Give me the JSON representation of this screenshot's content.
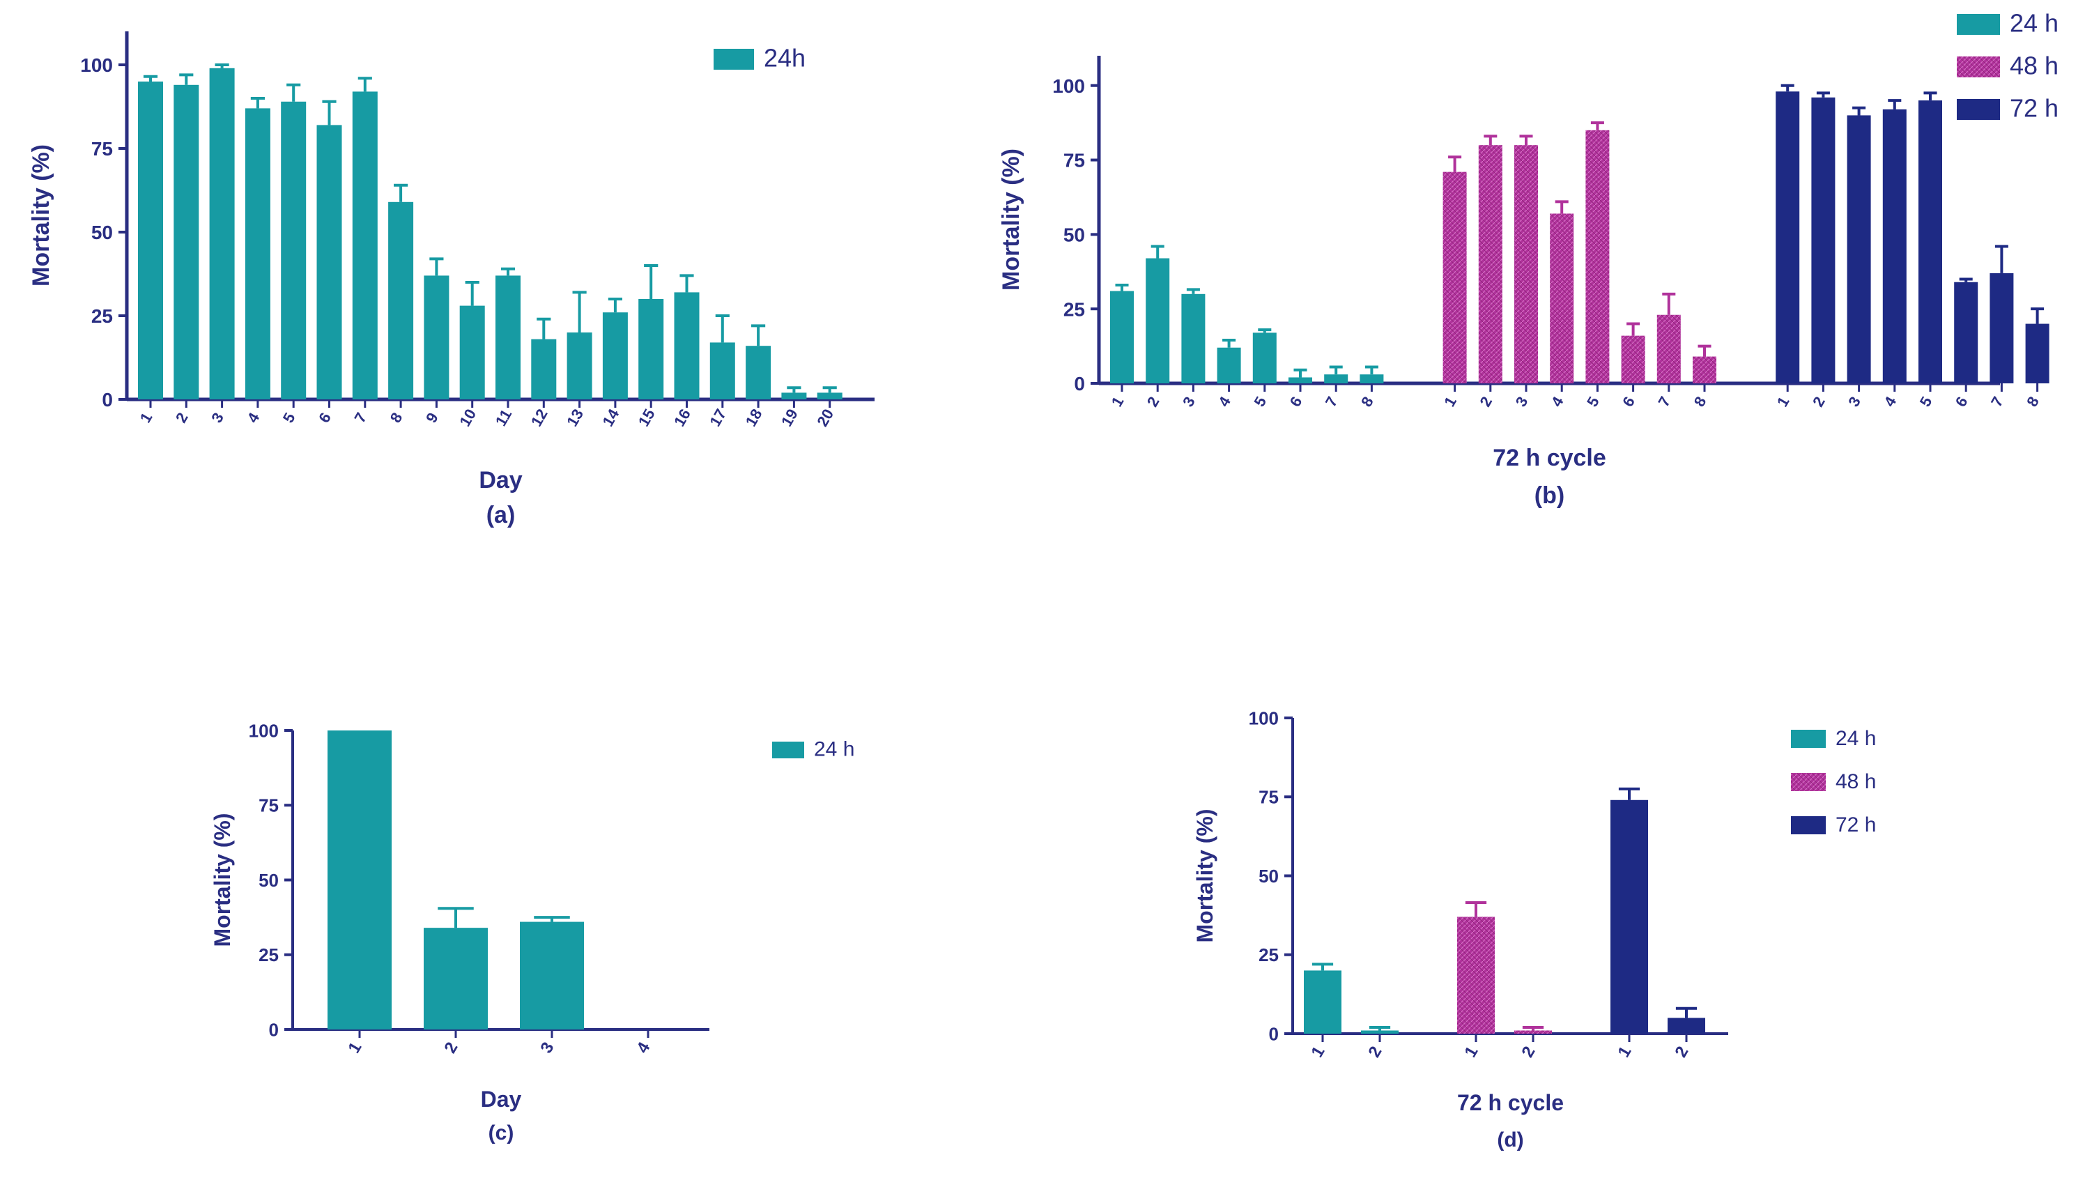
{
  "colors": {
    "h24": "#179ba3",
    "h48": "#b0329b",
    "h72": "#1e2a84",
    "axis": "#2a2e82",
    "text": "#2a2e82"
  },
  "chart_data": [
    {
      "id": "a",
      "type": "bar",
      "caption": "(a)",
      "xlabel": "Day",
      "ylabel": "Mortality (%)",
      "ylim": [
        0,
        110
      ],
      "yticks": [
        0,
        25,
        50,
        75,
        100
      ],
      "legend": [
        {
          "label": "24h",
          "color_key": "h24"
        }
      ],
      "legend_position": "top-right",
      "series": [
        {
          "name": "24h",
          "color_key": "h24",
          "categories": [
            "1",
            "2",
            "3",
            "4",
            "5",
            "6",
            "7",
            "8",
            "9",
            "10",
            "11",
            "12",
            "13",
            "14",
            "15",
            "16",
            "17",
            "18",
            "19",
            "20"
          ],
          "values": [
            95,
            94,
            99,
            87,
            89,
            82,
            92,
            59,
            37,
            28,
            37,
            18,
            20,
            26,
            30,
            32,
            17,
            16,
            2,
            2
          ],
          "errors": [
            1.5,
            3,
            1,
            3,
            5,
            7,
            4,
            5,
            5,
            7,
            2,
            6,
            12,
            4,
            10,
            5,
            8,
            6,
            1.5,
            1.5
          ]
        }
      ]
    },
    {
      "id": "b",
      "type": "bar",
      "caption": "(b)",
      "xlabel": "72 h cycle",
      "ylabel": "Mortality (%)",
      "ylim": [
        0,
        110
      ],
      "yticks": [
        0,
        25,
        50,
        75,
        100
      ],
      "legend": [
        {
          "label": "24 h",
          "color_key": "h24"
        },
        {
          "label": "48 h",
          "color_key": "h48"
        },
        {
          "label": "72 h",
          "color_key": "h72"
        }
      ],
      "legend_position": "top-right",
      "series": [
        {
          "name": "24 h",
          "color_key": "h24",
          "categories": [
            "1",
            "2",
            "3",
            "4",
            "5",
            "6",
            "7",
            "8"
          ],
          "values": [
            31,
            42,
            30,
            12,
            17,
            2,
            3,
            3
          ],
          "errors": [
            2,
            4,
            1.5,
            2.5,
            1,
            2.5,
            2.5,
            2.5
          ]
        },
        {
          "name": "48 h",
          "color_key": "h48",
          "categories": [
            "1",
            "2",
            "3",
            "4",
            "5",
            "6",
            "7",
            "8"
          ],
          "values": [
            71,
            80,
            80,
            57,
            85,
            16,
            23,
            9
          ],
          "errors": [
            5,
            3,
            3,
            4,
            2.5,
            4,
            7,
            3.5
          ]
        },
        {
          "name": "72 h",
          "color_key": "h72",
          "categories": [
            "1",
            "2",
            "3",
            "4",
            "5",
            "6",
            "7",
            "8"
          ],
          "values": [
            98,
            96,
            90,
            92,
            95,
            34,
            37,
            20
          ],
          "errors": [
            2,
            1.5,
            2.5,
            3,
            2.5,
            1,
            9,
            5
          ]
        }
      ]
    },
    {
      "id": "c",
      "type": "bar",
      "caption": "(c)",
      "xlabel": "Day",
      "ylabel": "Mortality (%)",
      "ylim": [
        0,
        100
      ],
      "yticks": [
        0,
        25,
        50,
        75,
        100
      ],
      "legend": [
        {
          "label": "24 h",
          "color_key": "h24"
        }
      ],
      "legend_position": "top-right",
      "series": [
        {
          "name": "24 h",
          "color_key": "h24",
          "categories": [
            "1",
            "2",
            "3",
            "4"
          ],
          "values": [
            100,
            34,
            36,
            0
          ],
          "errors": [
            0,
            6.5,
            1.5,
            0
          ]
        }
      ]
    },
    {
      "id": "d",
      "type": "bar",
      "caption": "(d)",
      "xlabel": "72 h cycle",
      "ylabel": "Mortality (%)",
      "ylim": [
        0,
        100
      ],
      "yticks": [
        0,
        25,
        50,
        75,
        100
      ],
      "legend": [
        {
          "label": "24 h",
          "color_key": "h24"
        },
        {
          "label": "48 h",
          "color_key": "h48"
        },
        {
          "label": "72 h",
          "color_key": "h72"
        }
      ],
      "legend_position": "top-right",
      "series": [
        {
          "name": "24 h",
          "color_key": "h24",
          "categories": [
            "1",
            "2"
          ],
          "values": [
            20,
            1
          ],
          "errors": [
            2,
            1
          ]
        },
        {
          "name": "48 h",
          "color_key": "h48",
          "categories": [
            "1",
            "2"
          ],
          "values": [
            37,
            1
          ],
          "errors": [
            4.5,
            1
          ]
        },
        {
          "name": "72 h",
          "color_key": "h72",
          "categories": [
            "1",
            "2"
          ],
          "values": [
            74,
            5
          ],
          "errors": [
            3.5,
            3
          ]
        }
      ]
    }
  ]
}
